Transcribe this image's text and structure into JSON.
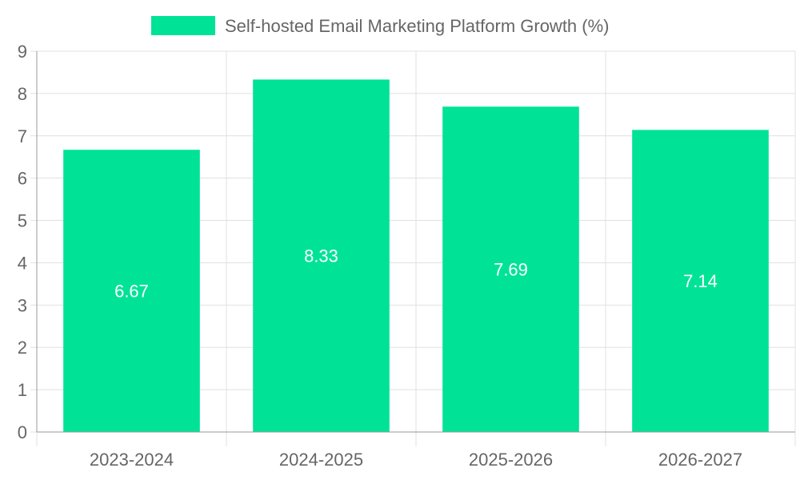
{
  "chart_data": {
    "type": "bar",
    "categories": [
      "2023-2024",
      "2024-2025",
      "2025-2026",
      "2026-2027"
    ],
    "series": [
      {
        "name": "Self-hosted Email Marketing Platform Growth (%)",
        "values": [
          6.67,
          8.33,
          7.69,
          7.14
        ],
        "color": "#00e396"
      }
    ],
    "data_labels": [
      "6.67",
      "8.33",
      "7.69",
      "7.14"
    ],
    "ylim": [
      0,
      9
    ],
    "yticks": [
      0,
      1,
      2,
      3,
      4,
      5,
      6,
      7,
      8,
      9
    ],
    "ytick_labels": [
      "0",
      "1",
      "2",
      "3",
      "4",
      "5",
      "6",
      "7",
      "8",
      "9"
    ],
    "grid": true,
    "legend_position": "top",
    "colors": {
      "grid": "#e0e0e0",
      "axis": "#999999",
      "text": "#666666",
      "label": "#ffffff"
    }
  }
}
